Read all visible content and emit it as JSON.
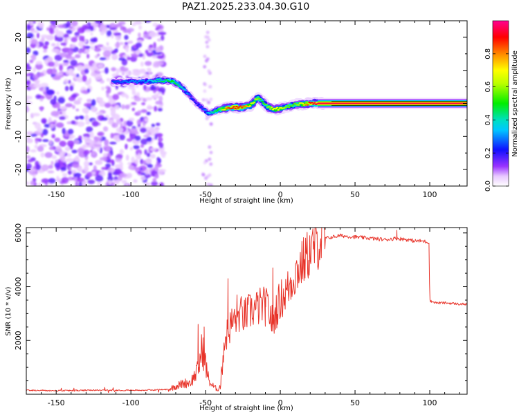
{
  "title": "PAZ1.2025.233.04.30.G10",
  "colors": {
    "snr_line": "#e8342a",
    "axis": "#000000",
    "background": "#ffffff"
  },
  "chart_data": [
    {
      "type": "heatmap",
      "title": "PAZ1.2025.233.04.30.G10",
      "xlabel": "Height of straight line (km)",
      "ylabel": "Frequency (Hz)",
      "xlim": [
        -170,
        125
      ],
      "ylim": [
        -25,
        25
      ],
      "x_ticks": [
        -150,
        -100,
        -50,
        0,
        50,
        100
      ],
      "x_tick_labels": [
        "-150",
        "-100",
        "-50",
        "0",
        "50",
        "100"
      ],
      "y_ticks": [
        -20,
        -10,
        0,
        10,
        20
      ],
      "y_tick_labels": [
        "-20",
        "-10",
        "0",
        "10",
        "20"
      ],
      "colorbar": {
        "label": "Normalized spectral amplitude",
        "range": [
          0,
          1
        ],
        "ticks": [
          0.0,
          0.2,
          0.4,
          0.6,
          0.8
        ],
        "tick_labels": [
          "0.0",
          "0.2",
          "0.4",
          "0.6",
          "0.8"
        ]
      },
      "ridge": {
        "x_km": [
          -112,
          -100,
          -90,
          -80,
          -72,
          -66,
          -60,
          -56,
          -52,
          -48,
          -44,
          -40,
          -35,
          -30,
          -25,
          -20,
          -15,
          -12,
          -8,
          -4,
          0,
          5,
          10,
          15,
          20,
          25,
          30,
          40,
          60,
          80,
          100,
          125
        ],
        "freq_hz": [
          6.5,
          6.6,
          6.6,
          7.0,
          6.8,
          5.0,
          2.0,
          0.0,
          -1.5,
          -3.0,
          -2.5,
          -1.8,
          -1.2,
          -1.2,
          -1.2,
          -0.7,
          1.8,
          0.5,
          -1.2,
          -1.8,
          -1.5,
          -1.0,
          -0.3,
          -0.2,
          0.0,
          0.0,
          0.0,
          0.0,
          0.0,
          0.0,
          0.0,
          0.0
        ],
        "amplitude": [
          0.25,
          0.3,
          0.3,
          0.45,
          0.5,
          0.4,
          0.25,
          0.2,
          0.25,
          0.35,
          0.45,
          0.55,
          0.85,
          0.9,
          0.85,
          0.7,
          0.6,
          0.5,
          0.6,
          0.7,
          0.7,
          0.55,
          0.55,
          0.7,
          0.9,
          0.95,
          0.95,
          0.95,
          0.95,
          0.95,
          0.95,
          0.95
        ]
      },
      "noise_region_km": [
        -170,
        -78
      ]
    },
    {
      "type": "line",
      "xlabel": "Height of straight line (km)",
      "ylabel": "SNR (10 * v/v)",
      "xlim": [
        -170,
        125
      ],
      "ylim": [
        0,
        6200
      ],
      "x_ticks": [
        -150,
        -100,
        -50,
        0,
        50,
        100
      ],
      "x_tick_labels": [
        "-150",
        "-100",
        "-50",
        "0",
        "50",
        "100"
      ],
      "y_ticks": [
        2000,
        4000,
        6000
      ],
      "y_tick_labels": [
        "2000",
        "4000",
        "6000"
      ],
      "series": [
        {
          "name": "SNR",
          "x": [
            -170,
            -150,
            -120,
            -90,
            -75,
            -70,
            -65,
            -60,
            -55,
            -52,
            -50,
            -48,
            -46,
            -44,
            -42,
            -40,
            -38,
            -36,
            -33,
            -30,
            -27,
            -24,
            -20,
            -16,
            -12,
            -8,
            -5,
            -3,
            0,
            5,
            10,
            15,
            20,
            25,
            30,
            35,
            40,
            50,
            60,
            70,
            78,
            85,
            90,
            95,
            99.5,
            100,
            101,
            105,
            110,
            115,
            120,
            125
          ],
          "y": [
            150,
            130,
            150,
            150,
            180,
            300,
            400,
            450,
            900,
            1800,
            1100,
            550,
            350,
            250,
            180,
            300,
            1800,
            2200,
            2600,
            2800,
            3000,
            2900,
            3100,
            3200,
            3300,
            3200,
            2600,
            3100,
            3500,
            3900,
            4500,
            4900,
            5300,
            5600,
            5800,
            5850,
            5900,
            5850,
            5800,
            5750,
            5800,
            5750,
            5700,
            5700,
            5650,
            3500,
            3450,
            3400,
            3400,
            3380,
            3350,
            3350
          ],
          "spikes": [
            {
              "x": -55,
              "y": 2600
            },
            {
              "x": -51,
              "y": 2500
            },
            {
              "x": -35,
              "y": 4300
            },
            {
              "x": -29,
              "y": 3700
            },
            {
              "x": -10,
              "y": 3600
            },
            {
              "x": -5,
              "y": 4700
            },
            {
              "x": 78,
              "y": 6100
            }
          ]
        }
      ]
    }
  ]
}
